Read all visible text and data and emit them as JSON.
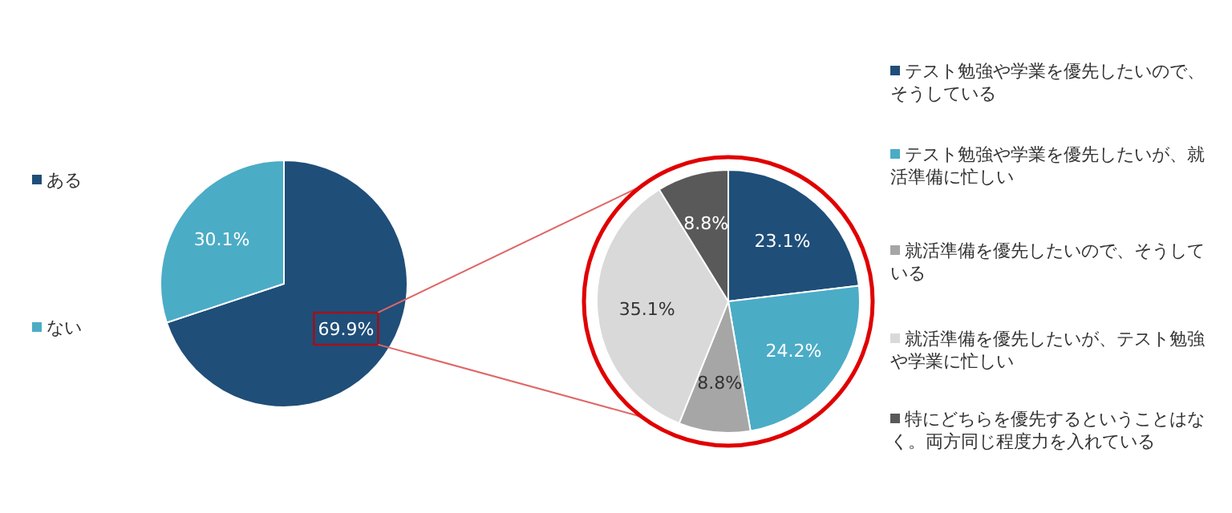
{
  "chart_data": [
    {
      "type": "pie",
      "categories": [
        "ある",
        "ない"
      ],
      "values": [
        69.9,
        30.1
      ],
      "colors": [
        "#1f4e79",
        "#4bacc6"
      ],
      "value_labels": [
        "69.9%",
        "30.1%"
      ],
      "legend": "left"
    },
    {
      "type": "pie",
      "categories": [
        "テスト勉強や学業を優先したいので、そうしている",
        "テスト勉強や学業を優先したいが、就活準備に忙しい",
        "就活準備を優先したいので、そうしている",
        "就活準備を優先したいが、テスト勉強や学業に忙しい",
        "特にどちらを優先するということはなく。両方同じ程度力を入れている"
      ],
      "values": [
        23.1,
        24.2,
        8.8,
        35.1,
        8.8
      ],
      "colors": [
        "#1f4e79",
        "#4bacc6",
        "#a6a6a6",
        "#d9d9d9",
        "#595959"
      ],
      "value_labels": [
        "23.1%",
        "24.2%",
        "8.8%",
        "35.1%",
        "8.8%"
      ],
      "legend": "right"
    }
  ]
}
